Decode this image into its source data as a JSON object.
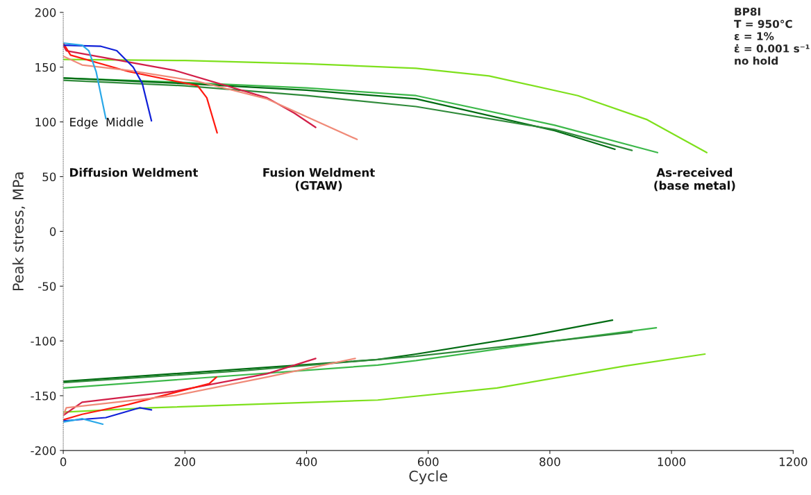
{
  "chart_data": {
    "type": "line",
    "xlabel": "Cycle",
    "ylabel": "Peak stress, MPa",
    "xlim": [
      0,
      1200
    ],
    "xticks": [
      0,
      200,
      400,
      600,
      800,
      1000,
      1200
    ],
    "ylim": [
      -200,
      200
    ],
    "yticks": [
      -200,
      -150,
      -100,
      -50,
      0,
      50,
      100,
      150,
      200
    ],
    "grid": false,
    "series": [
      {
        "color": "#7ee01c",
        "x": [
          0,
          200,
          400,
          580,
          700,
          846,
          960,
          1058
        ],
        "values": [
          157,
          156,
          153,
          149,
          142,
          124,
          102,
          72
        ]
      },
      {
        "color": "#7ee01c",
        "x": [
          0,
          145,
          517,
          713,
          922,
          1055
        ],
        "values": [
          -165,
          -161,
          -154,
          -143,
          -123,
          -112
        ]
      },
      {
        "color": "#3cb84a",
        "x": [
          0,
          200,
          400,
          580,
          808,
          977
        ],
        "values": [
          140,
          136,
          131,
          124,
          97,
          72
        ]
      },
      {
        "color": "#3cb84a",
        "x": [
          0,
          517,
          580,
          808,
          975
        ],
        "values": [
          -143,
          -122,
          -118,
          -100,
          -88
        ]
      },
      {
        "color": "#006b12",
        "x": [
          0,
          200,
          400,
          580,
          808,
          907
        ],
        "values": [
          140,
          135,
          129,
          121,
          92,
          75
        ]
      },
      {
        "color": "#006b12",
        "x": [
          0,
          517,
          580,
          770,
          903
        ],
        "values": [
          -137,
          -117,
          -112,
          -95,
          -81
        ]
      },
      {
        "color": "#2f8a3a",
        "x": [
          0,
          200,
          400,
          580,
          808,
          935
        ],
        "values": [
          138,
          133,
          124,
          114,
          93,
          74
        ]
      },
      {
        "color": "#2f8a3a",
        "x": [
          0,
          300,
          580,
          808,
          935
        ],
        "values": [
          -138,
          -127,
          -114,
          -100,
          -92
        ]
      },
      {
        "color": "#d21f48",
        "x": [
          0,
          5,
          183,
          335,
          380,
          415
        ],
        "values": [
          170,
          165,
          147,
          122,
          108,
          95
        ]
      },
      {
        "color": "#d21f48",
        "x": [
          0,
          31,
          183,
          335,
          415
        ],
        "values": [
          -168,
          -156,
          -146,
          -130,
          -116
        ]
      },
      {
        "color": "#ff1a10",
        "x": [
          0,
          12,
          107,
          221,
          236,
          253
        ],
        "values": [
          172,
          161,
          146,
          133,
          122,
          90
        ]
      },
      {
        "color": "#ff1a10",
        "x": [
          0,
          31,
          107,
          240,
          252
        ],
        "values": [
          -172,
          -167,
          -158,
          -139,
          -133
        ]
      },
      {
        "color": "#f08a78",
        "x": [
          0,
          31,
          107,
          221,
          335,
          483
        ],
        "values": [
          160,
          152,
          147,
          137,
          121,
          84
        ]
      },
      {
        "color": "#f08a78",
        "x": [
          0,
          5,
          183,
          335,
          480
        ],
        "values": [
          -168,
          -161,
          -150,
          -133,
          -116
        ]
      },
      {
        "color": "#1020d8",
        "x": [
          0,
          62,
          88,
          115,
          130,
          145
        ],
        "values": [
          170,
          169,
          165,
          150,
          135,
          101
        ]
      },
      {
        "color": "#1020d8",
        "x": [
          0,
          70,
          126,
          145
        ],
        "values": [
          -173,
          -170,
          -161,
          -163
        ]
      },
      {
        "color": "#2aa8e8",
        "x": [
          0,
          31,
          42,
          54,
          70
        ],
        "values": [
          172,
          170,
          165,
          146,
          103
        ]
      },
      {
        "color": "#2aa8e8",
        "x": [
          0,
          31,
          65
        ],
        "values": [
          -174,
          -171,
          -176
        ]
      }
    ],
    "annotations": [
      "Edge",
      "Middle",
      "Diffusion Weldment",
      "Fusion Weldment\n(GTAW)",
      "As-received\n(base metal)",
      "BP8I\nT = 950°C\nε = 1%\nε̇ = 0.001 s⁻¹\nno hold"
    ]
  }
}
